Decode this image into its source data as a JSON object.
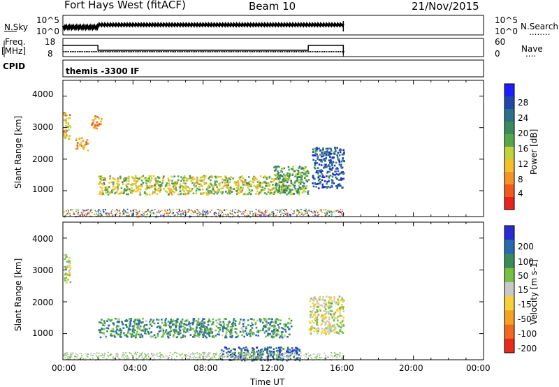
{
  "header": {
    "station": "Fort Hays West (fitACF)",
    "beam": "Beam 10",
    "date": "21/Nov/2015"
  },
  "top_panels": {
    "nsky_label": "N.Sky",
    "nsky_ticks": [
      "10^5",
      "10^0"
    ],
    "nsearch_label": "N.Search",
    "nsearch_dots": "........",
    "freq_label": "Freq.",
    "freq_unit": "[MHz]",
    "freq_ticks": [
      "18",
      "8"
    ],
    "nave_label": "Nave",
    "nave_ticks": [
      "60",
      "0"
    ],
    "nave_dots": "....",
    "cpid_label": "CPID",
    "cpid_value": "themis -3300 IF"
  },
  "chart_data": [
    {
      "type": "heatmap",
      "name_panel": "power",
      "ylabel": "Slant Range [km]",
      "yticks": [
        "4000",
        "3000",
        "2000",
        "1000"
      ],
      "ylim": [
        180,
        4500
      ],
      "xlim": [
        0,
        24
      ],
      "colorbar_label": "Power [dB]",
      "colorbar_ticks": [
        "28",
        "24",
        "20",
        "16",
        "12",
        "8",
        "4"
      ],
      "colorbar_colors": [
        "#1d1dff",
        "#2047a8",
        "#2c6e8c",
        "#3c8a5a",
        "#57a64a",
        "#c0d33c",
        "#f2c12a",
        "#f49426",
        "#f05a1f",
        "#e8221c"
      ],
      "scatter_bands": [
        {
          "t0": 0.0,
          "t1": 0.4,
          "r0": 2600,
          "r1": 3500,
          "level": 0.35
        },
        {
          "t0": 0.7,
          "t1": 1.4,
          "r0": 2300,
          "r1": 2700,
          "level": 0.3
        },
        {
          "t0": 1.6,
          "t1": 2.2,
          "r0": 3000,
          "r1": 3400,
          "level": 0.25
        },
        {
          "t0": 2.0,
          "t1": 13.0,
          "r0": 900,
          "r1": 1500,
          "level": 0.45
        },
        {
          "t0": 12.0,
          "t1": 14.0,
          "r0": 900,
          "r1": 1800,
          "level": 0.6
        },
        {
          "t0": 14.2,
          "t1": 16.0,
          "r0": 1100,
          "r1": 2400,
          "level": 0.8
        }
      ]
    },
    {
      "type": "heatmap",
      "name_panel": "velocity",
      "ylabel": "Slant Range [km]",
      "yticks": [
        "4000",
        "3000",
        "2000",
        "1000"
      ],
      "ylim": [
        180,
        4500
      ],
      "xlim": [
        0,
        24
      ],
      "colorbar_label": "Velocity [m s-1]",
      "colorbar_ticks": [
        "200",
        "100",
        "50",
        "15",
        "-15",
        "-50",
        "-100",
        "-200"
      ],
      "colorbar_colors": [
        "#2a2ad0",
        "#2a68b0",
        "#3a8a5a",
        "#74c043",
        "#c8c8c8",
        "#f6d23a",
        "#f4a224",
        "#f06a1e",
        "#e82a1c"
      ],
      "scatter_bands": [
        {
          "t0": 0.0,
          "t1": 0.4,
          "r0": 2600,
          "r1": 3500,
          "level": 0.5
        },
        {
          "t0": 2.0,
          "t1": 13.0,
          "r0": 900,
          "r1": 1500,
          "level": 0.7
        },
        {
          "t0": 14.0,
          "t1": 16.0,
          "r0": 1000,
          "r1": 2200,
          "level": 0.5
        },
        {
          "t0": 9.0,
          "t1": 13.5,
          "r0": 180,
          "r1": 600,
          "level": 0.85
        }
      ]
    }
  ],
  "xaxis": {
    "ticks": [
      "00:00",
      "04:00",
      "08:00",
      "12:00",
      "16:00",
      "20:00",
      "00:00"
    ],
    "label": "Time UT"
  }
}
